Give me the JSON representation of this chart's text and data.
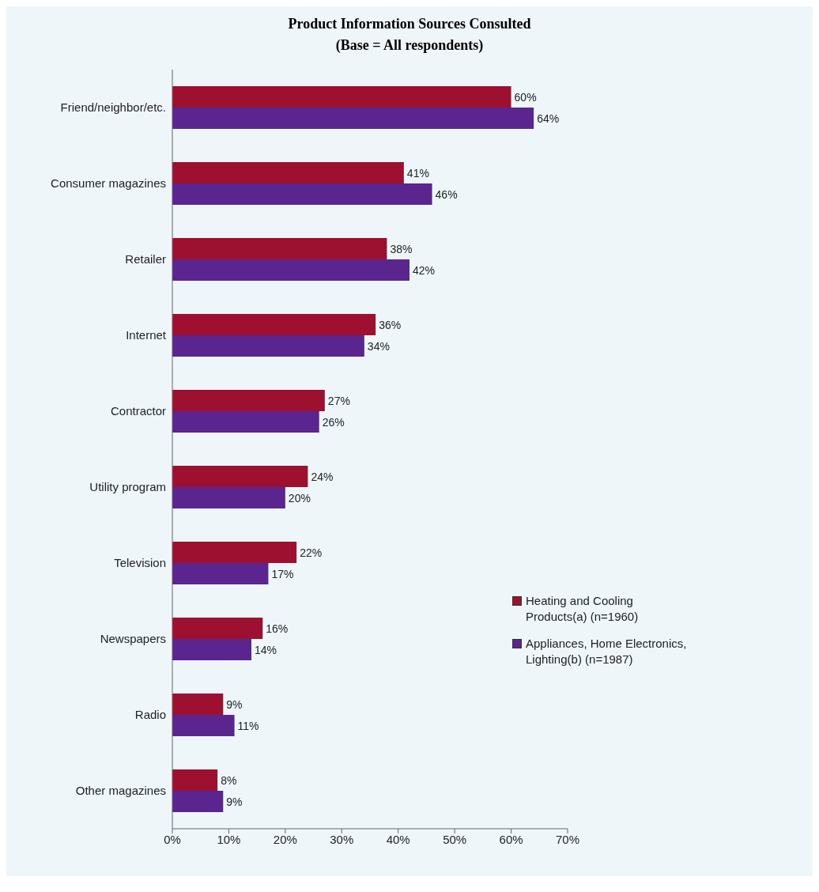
{
  "chart_data": {
    "type": "bar",
    "orientation": "horizontal",
    "title": "Product Information Sources Consulted",
    "subtitle": "(Base = All respondents)",
    "categories": [
      "Friend/neighbor/etc.",
      "Consumer magazines",
      "Retailer",
      "Internet",
      "Contractor",
      "Utility program",
      "Television",
      "Newspapers",
      "Radio",
      "Other magazines"
    ],
    "series": [
      {
        "name": "Heating and Cooling Products(a) (n=1960)",
        "color": "#9e1030",
        "values": [
          60,
          41,
          38,
          36,
          27,
          24,
          22,
          16,
          9,
          8
        ],
        "value_labels": [
          "60%",
          "41%",
          "38%",
          "36%",
          "27%",
          "24%",
          "22%",
          "16%",
          "9%",
          "8%"
        ]
      },
      {
        "name": "Appliances, Home Electronics, Lighting(b) (n=1987)",
        "color": "#5b2590",
        "values": [
          64,
          46,
          42,
          34,
          26,
          20,
          17,
          14,
          11,
          9
        ],
        "value_labels": [
          "64%",
          "46%",
          "42%",
          "34%",
          "26%",
          "20%",
          "17%",
          "14%",
          "11%",
          "9%"
        ]
      }
    ],
    "xlim": [
      0,
      70
    ],
    "xticks": [
      {
        "value": 0,
        "label": "0%"
      },
      {
        "value": 10,
        "label": "10%"
      },
      {
        "value": 20,
        "label": "20%"
      },
      {
        "value": 30,
        "label": "30%"
      },
      {
        "value": 40,
        "label": "40%"
      },
      {
        "value": 50,
        "label": "50%"
      },
      {
        "value": 60,
        "label": "60%"
      },
      {
        "value": 70,
        "label": "70%"
      }
    ],
    "grid": false,
    "legend": "bottom right"
  }
}
